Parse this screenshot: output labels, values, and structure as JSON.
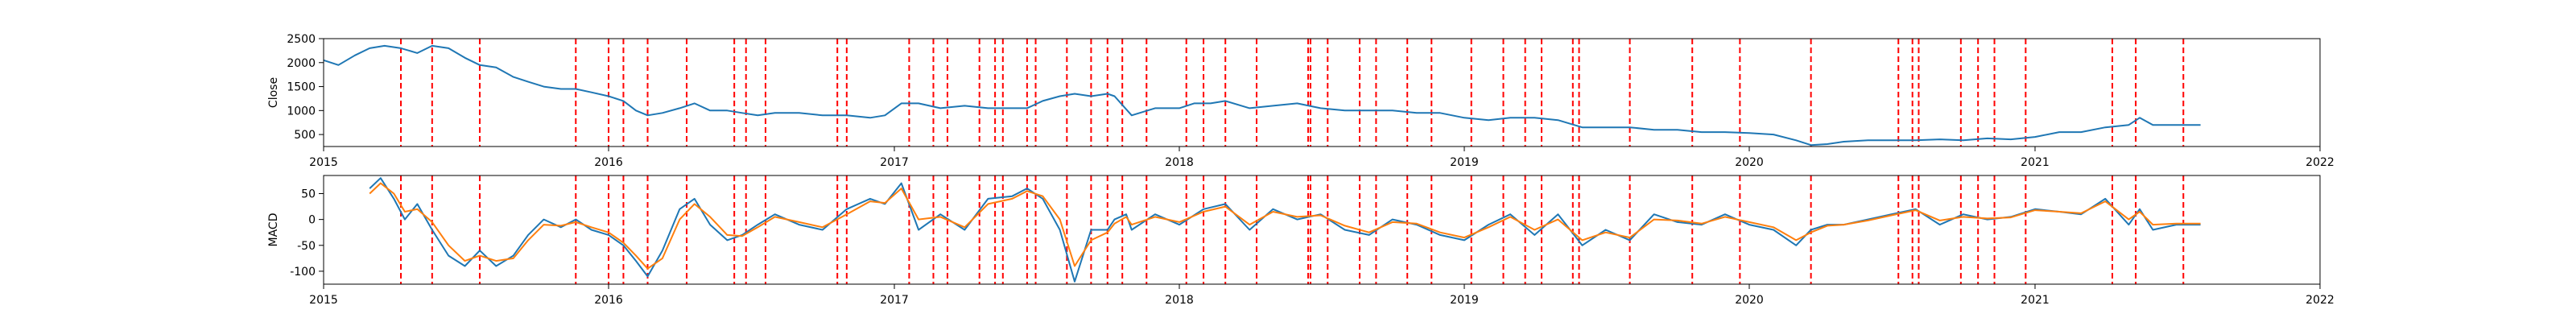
{
  "chart_data": [
    {
      "type": "line",
      "ylabel": "Close",
      "xlabel": "",
      "xlim": [
        "2015-01-01",
        "2022-01-01"
      ],
      "ylim": [
        250,
        2500
      ],
      "yticks": [
        500,
        1000,
        1500,
        2000,
        2500
      ],
      "xtick_labels": [
        "2015",
        "2016",
        "2017",
        "2018",
        "2019",
        "2020",
        "2021",
        "2022"
      ],
      "series": [
        {
          "color": "#1f77b4",
          "x": [
            "2015-01-01",
            "2015-01-20",
            "2015-02-10",
            "2015-03-01",
            "2015-03-20",
            "2015-04-10",
            "2015-05-01",
            "2015-05-20",
            "2015-06-10",
            "2015-07-01",
            "2015-07-20",
            "2015-08-10",
            "2015-09-01",
            "2015-09-20",
            "2015-10-10",
            "2015-11-01",
            "2015-11-20",
            "2015-12-10",
            "2016-01-01",
            "2016-01-20",
            "2016-02-05",
            "2016-02-20",
            "2016-03-10",
            "2016-04-01",
            "2016-04-20",
            "2016-05-10",
            "2016-06-01",
            "2016-06-20",
            "2016-07-10",
            "2016-08-01",
            "2016-09-01",
            "2016-10-01",
            "2016-11-01",
            "2016-12-01",
            "2016-12-20",
            "2017-01-10",
            "2017-02-01",
            "2017-03-01",
            "2017-04-01",
            "2017-05-01",
            "2017-06-01",
            "2017-06-20",
            "2017-07-10",
            "2017-08-01",
            "2017-08-20",
            "2017-09-10",
            "2017-10-01",
            "2017-10-10",
            "2017-11-01",
            "2017-12-01",
            "2018-01-01",
            "2018-01-20",
            "2018-02-10",
            "2018-03-01",
            "2018-04-01",
            "2018-05-01",
            "2018-06-01",
            "2018-07-01",
            "2018-08-01",
            "2018-09-01",
            "2018-10-01",
            "2018-11-01",
            "2018-12-01",
            "2019-01-01",
            "2019-02-01",
            "2019-03-01",
            "2019-04-01",
            "2019-05-01",
            "2019-06-01",
            "2019-07-01",
            "2019-08-01",
            "2019-09-01",
            "2019-10-01",
            "2019-11-01",
            "2019-12-01",
            "2020-01-01",
            "2020-02-01",
            "2020-03-01",
            "2020-03-20",
            "2020-04-10",
            "2020-05-01",
            "2020-06-01",
            "2020-07-01",
            "2020-08-01",
            "2020-09-01",
            "2020-10-01",
            "2020-11-01",
            "2020-12-01",
            "2021-01-01",
            "2021-02-01",
            "2021-03-01",
            "2021-04-01",
            "2021-05-01",
            "2021-05-15",
            "2021-06-01",
            "2021-07-01",
            "2021-08-01"
          ],
          "values": [
            2050,
            1950,
            2150,
            2300,
            2350,
            2300,
            2200,
            2350,
            2300,
            2100,
            1950,
            1900,
            1700,
            1600,
            1500,
            1450,
            1450,
            1380,
            1300,
            1200,
            1000,
            900,
            950,
            1050,
            1150,
            1000,
            1000,
            950,
            900,
            950,
            950,
            900,
            900,
            850,
            900,
            1150,
            1150,
            1050,
            1100,
            1050,
            1050,
            1050,
            1200,
            1300,
            1350,
            1300,
            1350,
            1300,
            900,
            1050,
            1050,
            1150,
            1150,
            1200,
            1050,
            1100,
            1150,
            1050,
            1000,
            1000,
            1000,
            950,
            950,
            850,
            800,
            850,
            850,
            800,
            650,
            650,
            650,
            600,
            600,
            550,
            550,
            530,
            500,
            380,
            280,
            300,
            350,
            380,
            380,
            380,
            400,
            380,
            420,
            400,
            450,
            550,
            550,
            650,
            700,
            850,
            700,
            700,
            700
          ]
        }
      ],
      "vlines": {
        "color": "#ff0000",
        "x": [
          "2015-04-10",
          "2015-05-20",
          "2015-07-20",
          "2015-11-20",
          "2016-01-01",
          "2016-01-20",
          "2016-02-20",
          "2016-04-10",
          "2016-06-10",
          "2016-06-25",
          "2016-07-20",
          "2016-10-20",
          "2016-11-01",
          "2017-01-20",
          "2017-02-20",
          "2017-03-10",
          "2017-04-20",
          "2017-05-10",
          "2017-05-20",
          "2017-06-20",
          "2017-07-01",
          "2017-08-10",
          "2017-09-10",
          "2017-10-01",
          "2017-10-20",
          "2017-11-20",
          "2018-01-10",
          "2018-02-01",
          "2018-03-01",
          "2018-04-10",
          "2018-06-15",
          "2018-06-18",
          "2018-07-10",
          "2018-08-20",
          "2018-09-10",
          "2018-10-20",
          "2018-11-20",
          "2019-01-10",
          "2019-02-20",
          "2019-03-20",
          "2019-04-10",
          "2019-05-20",
          "2019-05-28",
          "2019-08-01",
          "2019-10-20",
          "2019-12-20",
          "2020-03-20",
          "2020-07-10",
          "2020-07-28",
          "2020-08-05",
          "2020-09-28",
          "2020-10-20",
          "2020-11-10",
          "2020-12-20",
          "2021-04-10",
          "2021-05-10",
          "2021-07-10"
        ]
      }
    },
    {
      "type": "line",
      "ylabel": "MACD",
      "xlabel": "",
      "xlim": [
        "2015-01-01",
        "2022-01-01"
      ],
      "ylim": [
        -125,
        85
      ],
      "yticks": [
        -100,
        -50,
        0,
        50
      ],
      "xtick_labels": [
        "2015",
        "2016",
        "2017",
        "2018",
        "2019",
        "2020",
        "2021",
        "2022"
      ],
      "series": [
        {
          "color": "#1f77b4",
          "x": [
            "2015-03-01",
            "2015-03-15",
            "2015-04-01",
            "2015-04-15",
            "2015-05-01",
            "2015-05-20",
            "2015-06-10",
            "2015-07-01",
            "2015-07-20",
            "2015-08-10",
            "2015-09-01",
            "2015-09-20",
            "2015-10-10",
            "2015-11-01",
            "2015-11-20",
            "2015-12-10",
            "2016-01-01",
            "2016-01-20",
            "2016-02-05",
            "2016-02-20",
            "2016-03-10",
            "2016-04-01",
            "2016-04-20",
            "2016-05-10",
            "2016-06-01",
            "2016-06-20",
            "2016-07-10",
            "2016-08-01",
            "2016-09-01",
            "2016-10-01",
            "2016-11-01",
            "2016-12-01",
            "2016-12-20",
            "2017-01-10",
            "2017-02-01",
            "2017-03-01",
            "2017-04-01",
            "2017-05-01",
            "2017-06-01",
            "2017-06-20",
            "2017-07-10",
            "2017-08-01",
            "2017-08-20",
            "2017-09-10",
            "2017-10-01",
            "2017-10-10",
            "2017-10-25",
            "2017-11-01",
            "2017-12-01",
            "2018-01-01",
            "2018-02-01",
            "2018-03-01",
            "2018-04-01",
            "2018-05-01",
            "2018-06-01",
            "2018-07-01",
            "2018-08-01",
            "2018-09-01",
            "2018-10-01",
            "2018-11-01",
            "2018-12-01",
            "2019-01-01",
            "2019-02-01",
            "2019-03-01",
            "2019-04-01",
            "2019-05-01",
            "2019-06-01",
            "2019-07-01",
            "2019-08-01",
            "2019-09-01",
            "2019-10-01",
            "2019-11-01",
            "2019-12-01",
            "2020-01-01",
            "2020-02-01",
            "2020-03-01",
            "2020-03-20",
            "2020-04-10",
            "2020-05-01",
            "2020-06-01",
            "2020-07-01",
            "2020-08-01",
            "2020-09-01",
            "2020-10-01",
            "2020-11-01",
            "2020-12-01",
            "2021-01-01",
            "2021-02-01",
            "2021-03-01",
            "2021-04-01",
            "2021-05-01",
            "2021-05-15",
            "2021-06-01",
            "2021-07-01",
            "2021-08-01"
          ],
          "values": [
            60,
            80,
            40,
            0,
            30,
            -20,
            -70,
            -90,
            -60,
            -90,
            -70,
            -30,
            0,
            -15,
            0,
            -20,
            -30,
            -50,
            -80,
            -110,
            -60,
            20,
            40,
            -10,
            -40,
            -30,
            -10,
            10,
            -10,
            -20,
            20,
            40,
            30,
            70,
            -20,
            10,
            -20,
            40,
            45,
            60,
            40,
            -20,
            -120,
            -20,
            -20,
            0,
            10,
            -20,
            10,
            -10,
            20,
            30,
            -20,
            20,
            0,
            10,
            -20,
            -30,
            0,
            -10,
            -30,
            -40,
            -10,
            10,
            -30,
            10,
            -50,
            -20,
            -40,
            10,
            -5,
            -10,
            10,
            -10,
            -20,
            -50,
            -20,
            -10,
            -10,
            0,
            10,
            20,
            -10,
            10,
            0,
            5,
            20,
            15,
            10,
            40,
            -10,
            20,
            -20,
            -10,
            -10
          ]
        },
        {
          "color": "#ff7f0e",
          "x": [
            "2015-03-01",
            "2015-03-15",
            "2015-04-01",
            "2015-04-15",
            "2015-05-01",
            "2015-05-20",
            "2015-06-10",
            "2015-07-01",
            "2015-07-20",
            "2015-08-10",
            "2015-09-01",
            "2015-09-20",
            "2015-10-10",
            "2015-11-01",
            "2015-11-20",
            "2015-12-10",
            "2016-01-01",
            "2016-01-20",
            "2016-02-05",
            "2016-02-20",
            "2016-03-10",
            "2016-04-01",
            "2016-04-20",
            "2016-05-10",
            "2016-06-01",
            "2016-06-20",
            "2016-07-10",
            "2016-08-01",
            "2016-09-01",
            "2016-10-01",
            "2016-11-01",
            "2016-12-01",
            "2016-12-20",
            "2017-01-10",
            "2017-02-01",
            "2017-03-01",
            "2017-04-01",
            "2017-05-01",
            "2017-06-01",
            "2017-06-20",
            "2017-07-10",
            "2017-08-01",
            "2017-08-20",
            "2017-09-10",
            "2017-10-01",
            "2017-10-10",
            "2017-10-25",
            "2017-11-01",
            "2017-12-01",
            "2018-01-01",
            "2018-02-01",
            "2018-03-01",
            "2018-04-01",
            "2018-05-01",
            "2018-06-01",
            "2018-07-01",
            "2018-08-01",
            "2018-09-01",
            "2018-10-01",
            "2018-11-01",
            "2018-12-01",
            "2019-01-01",
            "2019-02-01",
            "2019-03-01",
            "2019-04-01",
            "2019-05-01",
            "2019-06-01",
            "2019-07-01",
            "2019-08-01",
            "2019-09-01",
            "2019-10-01",
            "2019-11-01",
            "2019-12-01",
            "2020-01-01",
            "2020-02-01",
            "2020-03-01",
            "2020-03-20",
            "2020-04-10",
            "2020-05-01",
            "2020-06-01",
            "2020-07-01",
            "2020-08-01",
            "2020-09-01",
            "2020-10-01",
            "2020-11-01",
            "2020-12-01",
            "2021-01-01",
            "2021-02-01",
            "2021-03-01",
            "2021-04-01",
            "2021-05-01",
            "2021-05-15",
            "2021-06-01",
            "2021-07-01",
            "2021-08-01"
          ],
          "values": [
            50,
            70,
            50,
            15,
            20,
            -5,
            -50,
            -80,
            -70,
            -80,
            -75,
            -40,
            -10,
            -12,
            -5,
            -15,
            -25,
            -45,
            -70,
            -95,
            -75,
            0,
            30,
            5,
            -30,
            -32,
            -15,
            5,
            -5,
            -15,
            10,
            35,
            32,
            60,
            0,
            5,
            -15,
            30,
            40,
            55,
            45,
            0,
            -90,
            -40,
            -25,
            -8,
            5,
            -10,
            5,
            -5,
            15,
            25,
            -10,
            15,
            5,
            8,
            -12,
            -25,
            -5,
            -8,
            -25,
            -35,
            -15,
            5,
            -20,
            0,
            -40,
            -25,
            -35,
            0,
            -2,
            -8,
            5,
            -5,
            -15,
            -40,
            -25,
            -12,
            -10,
            -2,
            8,
            18,
            -2,
            5,
            2,
            4,
            18,
            15,
            12,
            35,
            0,
            15,
            -10,
            -8,
            -8
          ]
        }
      ],
      "vlines": {
        "color": "#ff0000",
        "x": [
          "2015-04-10",
          "2015-05-20",
          "2015-07-20",
          "2015-11-20",
          "2016-01-01",
          "2016-01-20",
          "2016-02-20",
          "2016-04-10",
          "2016-06-10",
          "2016-06-25",
          "2016-07-20",
          "2016-10-20",
          "2016-11-01",
          "2017-01-20",
          "2017-02-20",
          "2017-03-10",
          "2017-04-20",
          "2017-05-10",
          "2017-05-20",
          "2017-06-20",
          "2017-07-01",
          "2017-08-10",
          "2017-09-10",
          "2017-10-01",
          "2017-10-20",
          "2017-11-20",
          "2018-01-10",
          "2018-02-01",
          "2018-03-01",
          "2018-04-10",
          "2018-06-15",
          "2018-06-18",
          "2018-07-10",
          "2018-08-20",
          "2018-09-10",
          "2018-10-20",
          "2018-11-20",
          "2019-01-10",
          "2019-02-20",
          "2019-03-20",
          "2019-04-10",
          "2019-05-20",
          "2019-05-28",
          "2019-08-01",
          "2019-10-20",
          "2019-12-20",
          "2020-03-20",
          "2020-07-10",
          "2020-07-28",
          "2020-08-05",
          "2020-09-28",
          "2020-10-20",
          "2020-11-10",
          "2020-12-20",
          "2021-04-10",
          "2021-05-10",
          "2021-07-10"
        ]
      }
    }
  ]
}
